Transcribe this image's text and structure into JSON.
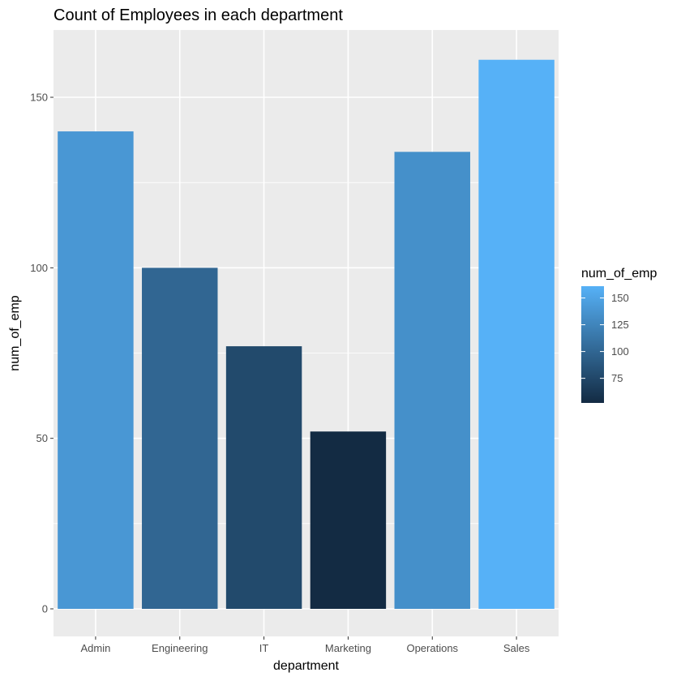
{
  "chart_data": {
    "type": "bar",
    "title": "Count of Employees in each department",
    "xlabel": "department",
    "ylabel": "num_of_emp",
    "categories": [
      "Admin",
      "Engineering",
      "IT",
      "Marketing",
      "Operations",
      "Sales"
    ],
    "values": [
      140,
      100,
      77,
      52,
      134,
      161
    ],
    "ylim": [
      0,
      168
    ],
    "yticks": [
      0,
      50,
      100,
      150
    ],
    "grid": true,
    "panel_background": "#ebebeb",
    "grid_color": "#ffffff",
    "legend": {
      "title": "num_of_emp",
      "position": "right",
      "type": "colorbar",
      "range": [
        52,
        161
      ],
      "ticks": [
        75,
        100,
        125,
        150
      ],
      "low_color": "#132b43",
      "high_color": "#56b1f7"
    }
  }
}
